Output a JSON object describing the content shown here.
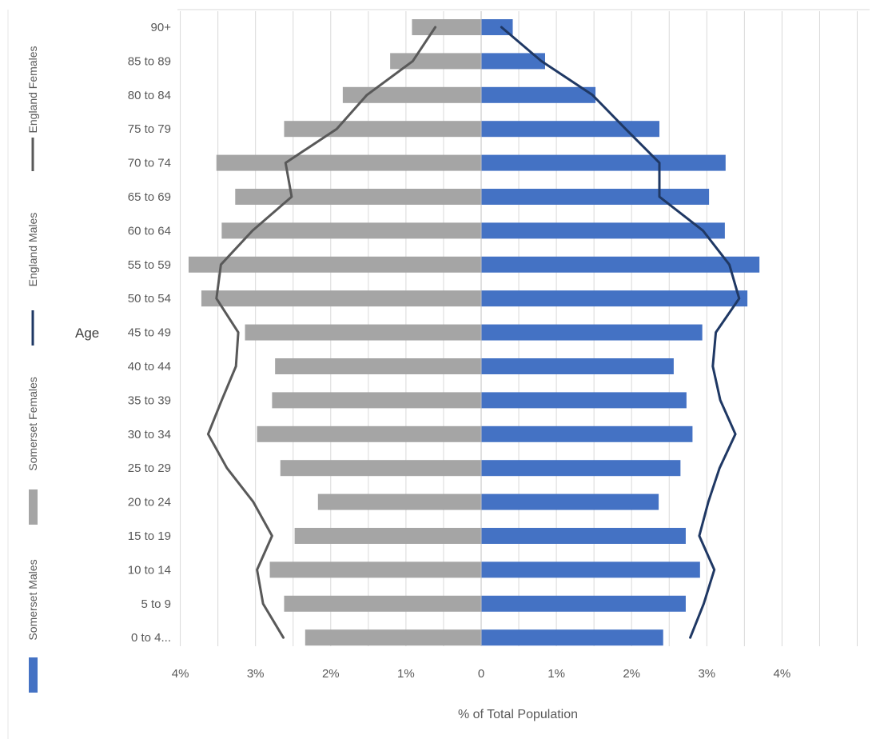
{
  "chart_data": {
    "type": "bar",
    "subtype": "population-pyramid",
    "ylabel": "Age",
    "xlabel": "% of Total Population",
    "x_ticks": [
      "4%",
      "3%",
      "2%",
      "1%",
      "0",
      "1%",
      "2%",
      "3%",
      "4%"
    ],
    "xlim": [
      -4.0,
      5.0
    ],
    "grid": true,
    "legend_position": "left",
    "categories": [
      "90+",
      "85 to 89",
      "80 to 84",
      "75 to 79",
      "70 to 74",
      "65 to 69",
      "60 to 64",
      "55 to 59",
      "50 to 54",
      "45 to 49",
      "40 to 44",
      "35 to 39",
      "30 to 34",
      "25 to 29",
      "20 to 24",
      "15 to 19",
      "10 to 14",
      "5 to 9",
      "0 to 4"
    ],
    "category_display": [
      "90+",
      "85 to 89",
      "80 to 84",
      "75 to 79",
      "70 to 74",
      "65 to 69",
      "60 to 64",
      "55 to 59",
      "50 to 54",
      "45 to 49",
      "40 to 44",
      "35 to 39",
      "30 to 34",
      "25 to 29",
      "20 to 24",
      "15 to 19",
      "10 to 14",
      "5 to 9",
      "0 to 4..."
    ],
    "series": [
      {
        "name": "Somerset Males",
        "kind": "bar",
        "side": "right",
        "color": "#4472c4",
        "values": [
          0.42,
          0.85,
          1.52,
          2.37,
          3.25,
          3.03,
          3.24,
          3.7,
          3.54,
          2.94,
          2.56,
          2.73,
          2.81,
          2.65,
          2.36,
          2.72,
          2.91,
          2.72,
          2.42
        ]
      },
      {
        "name": "Somerset Females",
        "kind": "bar",
        "side": "left",
        "color": "#a5a5a5",
        "values": [
          0.92,
          1.21,
          1.84,
          2.62,
          3.52,
          3.27,
          3.45,
          3.89,
          3.72,
          3.14,
          2.74,
          2.78,
          2.98,
          2.67,
          2.17,
          2.48,
          2.81,
          2.62,
          2.34
        ]
      },
      {
        "name": "England Males",
        "kind": "line",
        "side": "right",
        "color": "#1f3864",
        "values": [
          0.27,
          0.8,
          1.48,
          1.92,
          2.37,
          2.37,
          2.95,
          3.3,
          3.43,
          3.12,
          3.08,
          3.18,
          3.38,
          3.17,
          3.02,
          2.9,
          3.1,
          2.96,
          2.78
        ]
      },
      {
        "name": "England Females",
        "kind": "line",
        "side": "left",
        "color": "#595959",
        "values": [
          0.61,
          0.91,
          1.52,
          1.92,
          2.6,
          2.52,
          3.04,
          3.46,
          3.52,
          3.23,
          3.26,
          3.45,
          3.63,
          3.38,
          3.03,
          2.78,
          2.98,
          2.9,
          2.63
        ]
      }
    ]
  }
}
